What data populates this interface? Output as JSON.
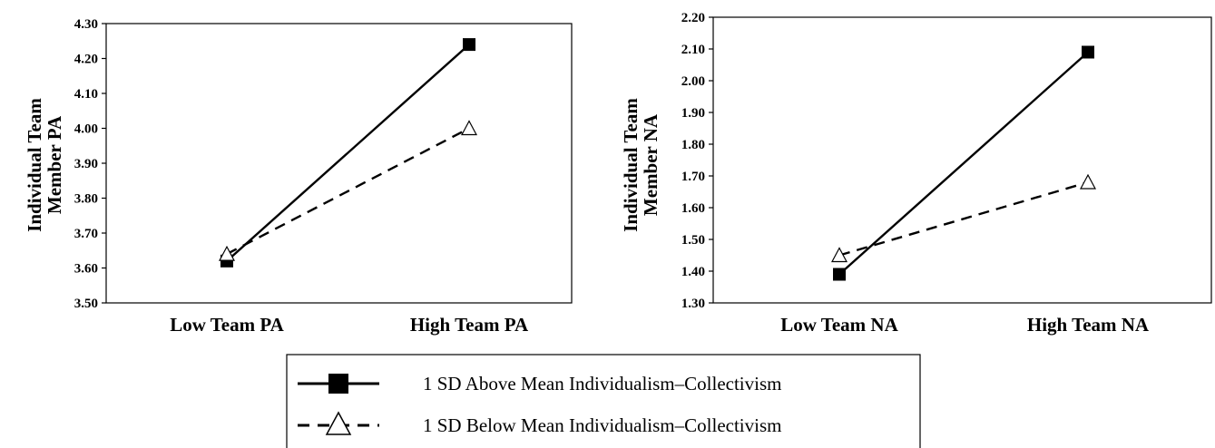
{
  "chart_data": [
    {
      "type": "line",
      "title": "",
      "xlabel": "",
      "ylabel": [
        "Individual Team",
        "Member PA"
      ],
      "categories": [
        "Low Team PA",
        "High Team PA"
      ],
      "ylim": [
        3.5,
        4.3
      ],
      "yticks": [
        "3.50",
        "3.60",
        "3.70",
        "3.80",
        "3.90",
        "4.00",
        "4.10",
        "4.20",
        "4.30"
      ],
      "grid": false,
      "series": [
        {
          "name": "1 SD Above Mean Individualism–Collectivism",
          "values": [
            3.62,
            4.24
          ],
          "marker": "square-filled",
          "line": "solid"
        },
        {
          "name": "1 SD Below Mean Individualism–Collectivism",
          "values": [
            3.64,
            4.0
          ],
          "marker": "triangle-open",
          "line": "dashed"
        }
      ]
    },
    {
      "type": "line",
      "title": "",
      "xlabel": "",
      "ylabel": [
        "Individual Team",
        "Member NA"
      ],
      "categories": [
        "Low Team NA",
        "High Team NA"
      ],
      "ylim": [
        1.3,
        2.2
      ],
      "yticks": [
        "1.30",
        "1.40",
        "1.50",
        "1.60",
        "1.70",
        "1.80",
        "1.90",
        "2.00",
        "2.10",
        "2.20"
      ],
      "grid": false,
      "series": [
        {
          "name": "1 SD Above Mean Individualism–Collectivism",
          "values": [
            1.39,
            2.09
          ],
          "marker": "square-filled",
          "line": "solid"
        },
        {
          "name": "1 SD Below Mean Individualism–Collectivism",
          "values": [
            1.45,
            1.68
          ],
          "marker": "triangle-open",
          "line": "dashed"
        }
      ]
    }
  ],
  "legend": {
    "placement": "bottom-center",
    "items": [
      {
        "label": "1 SD Above Mean Individualism–Collectivism",
        "marker": "square-filled",
        "line": "solid"
      },
      {
        "label": "1 SD Below Mean Individualism–Collectivism",
        "marker": "triangle-open",
        "line": "dashed"
      }
    ]
  },
  "colors": {
    "ink": "#000000",
    "background": "#ffffff"
  }
}
